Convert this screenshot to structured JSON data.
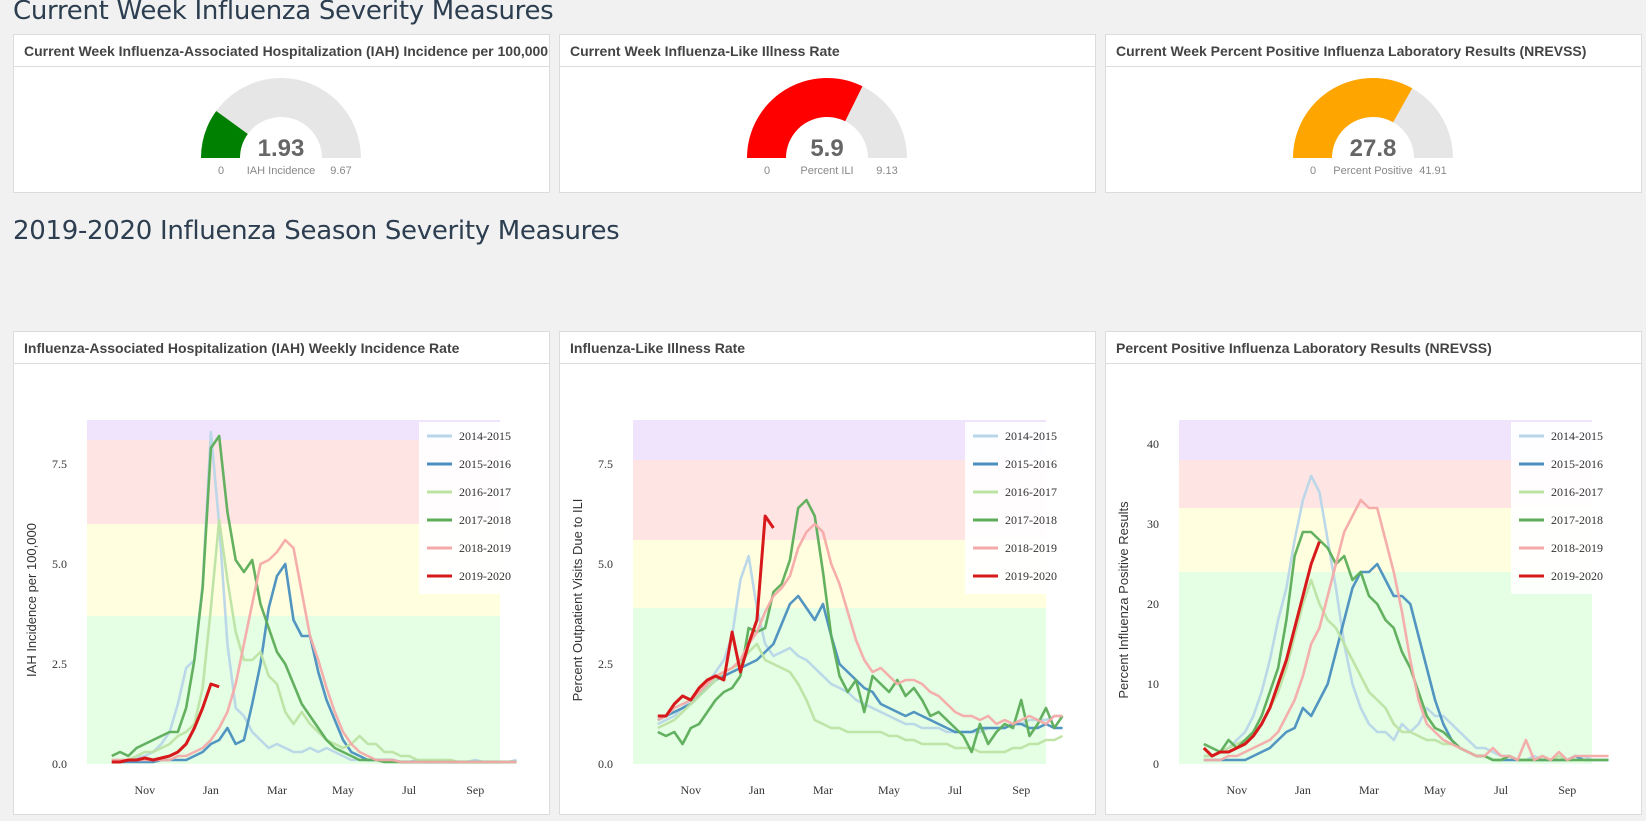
{
  "current_week_title": "Current Week Influenza Severity Measures",
  "season_title": "2019-2020 Influenza Season Severity Measures",
  "gauges": [
    {
      "title": "Current Week Influenza-Associated Hospitalization (IAH) Incidence per 100,000",
      "value": 1.93,
      "value_text": "1.93",
      "min": 0,
      "max": 9.67,
      "min_text": "0",
      "max_text": "9.67",
      "label": "IAH Incidence",
      "color": "#008000"
    },
    {
      "title": "Current Week Influenza-Like Illness Rate",
      "value": 5.9,
      "value_text": "5.9",
      "min": 0,
      "max": 9.13,
      "min_text": "0",
      "max_text": "9.13",
      "label": "Percent ILI",
      "color": "#ff0000"
    },
    {
      "title": "Current Week Percent Positive Influenza Laboratory Results (NREVSS)",
      "value": 27.8,
      "value_text": "27.8",
      "min": 0,
      "max": 41.91,
      "min_text": "0",
      "max_text": "41.91",
      "label": "Percent Positive",
      "color": "#ffa500"
    }
  ],
  "series_colors": {
    "2014-2015": "#b8d6e8",
    "2015-2016": "#4a8fbf",
    "2016-2017": "#bde3a3",
    "2017-2018": "#5cad58",
    "2018-2019": "#f4aaa8",
    "2019-2020": "#d7191c"
  },
  "band_colors": [
    "#e4ffe4",
    "#ffffe0",
    "#ffe4e4",
    "#efe4fb"
  ],
  "chart_data": [
    {
      "type": "line",
      "title": "Influenza-Associated Hospitalization (IAH) Weekly Incidence Rate",
      "ylabel": "IAH Incidence per 100,000",
      "xlabel": "",
      "x_ticks": [
        "Nov",
        "Jan",
        "Mar",
        "May",
        "Jul",
        "Sep"
      ],
      "x_tick_weeks": [
        4,
        12,
        20,
        28,
        36,
        44
      ],
      "x_range": [
        -3,
        47
      ],
      "ylim": [
        0,
        8.6
      ],
      "y_ticks": [
        0,
        2.5,
        5,
        7.5
      ],
      "y_tick_labels": [
        "0.0",
        "2.5",
        "5.0",
        "7.5"
      ],
      "bands": [
        0,
        3.7,
        6.0,
        8.1,
        8.6
      ],
      "legend_position": "top-right",
      "series": [
        {
          "name": "2014-2015",
          "values": [
            0.1,
            0.1,
            0.1,
            0.15,
            0.2,
            0.3,
            0.5,
            0.8,
            1.5,
            2.4,
            2.6,
            4.5,
            8.3,
            6.0,
            3.0,
            1.4,
            1.2,
            0.8,
            0.6,
            0.4,
            0.5,
            0.4,
            0.3,
            0.3,
            0.4,
            0.3,
            0.4,
            0.3,
            0.2,
            0.1,
            0.1,
            0.1,
            0.1,
            0.1,
            0.1,
            0.05,
            0.05,
            0.1,
            0.05,
            0.05,
            0.1,
            0.05,
            0.05,
            0.05,
            0.1,
            0.05,
            0.05,
            0.05,
            0.05,
            0.1
          ]
        },
        {
          "name": "2015-2016",
          "values": [
            0.05,
            0.05,
            0.05,
            0.05,
            0.05,
            0.05,
            0.1,
            0.1,
            0.1,
            0.1,
            0.2,
            0.3,
            0.5,
            0.6,
            0.9,
            0.5,
            0.6,
            1.5,
            2.5,
            3.9,
            4.7,
            5.0,
            3.6,
            3.2,
            3.2,
            2.3,
            1.6,
            1.1,
            0.6,
            0.3,
            0.2,
            0.1,
            0.1,
            0.1,
            0.1,
            0.05,
            0.05,
            0.05,
            0.05,
            0.05,
            0.05,
            0.05,
            0.05,
            0.05,
            0.05,
            0.05,
            0.05,
            0.05,
            0.05,
            0.05
          ]
        },
        {
          "name": "2016-2017",
          "values": [
            0.1,
            0.1,
            0.1,
            0.2,
            0.3,
            0.3,
            0.4,
            0.5,
            0.7,
            0.8,
            1.0,
            1.9,
            3.9,
            6.1,
            4.6,
            3.3,
            2.6,
            2.6,
            2.8,
            2.2,
            2.0,
            1.3,
            1.0,
            1.3,
            1.0,
            0.8,
            0.6,
            0.5,
            0.4,
            0.5,
            0.7,
            0.5,
            0.5,
            0.3,
            0.3,
            0.2,
            0.2,
            0.1,
            0.1,
            0.1,
            0.1,
            0.1,
            0.05,
            0.05,
            0.05,
            0.05,
            0.05,
            0.05,
            0.05,
            0.05
          ]
        },
        {
          "name": "2017-2018",
          "values": [
            0.2,
            0.3,
            0.2,
            0.4,
            0.5,
            0.6,
            0.7,
            0.8,
            0.8,
            1.4,
            2.6,
            4.4,
            7.9,
            8.2,
            6.3,
            5.1,
            4.8,
            5.1,
            4.0,
            3.4,
            2.8,
            2.5,
            2.0,
            1.5,
            1.2,
            0.9,
            0.6,
            0.4,
            0.3,
            0.2,
            0.1,
            0.1,
            0.1,
            0.05,
            0.05,
            0.05,
            0.05,
            0.05,
            0.05,
            0.05,
            0.05,
            0.05,
            0.05,
            0.05,
            0.05,
            0.05,
            0.05,
            0.05,
            0.05,
            0.05
          ]
        },
        {
          "name": "2018-2019",
          "values": [
            0.1,
            0.1,
            0.1,
            0.1,
            0.1,
            0.1,
            0.1,
            0.1,
            0.2,
            0.2,
            0.3,
            0.4,
            0.6,
            0.9,
            1.3,
            2.0,
            3.0,
            4.0,
            5.0,
            5.1,
            5.3,
            5.6,
            5.4,
            4.3,
            3.2,
            2.6,
            1.9,
            1.3,
            0.8,
            0.5,
            0.3,
            0.2,
            0.1,
            0.1,
            0.1,
            0.05,
            0.05,
            0.05,
            0.05,
            0.05,
            0.05,
            0.05,
            0.05,
            0.05,
            0.05,
            0.05,
            0.05,
            0.05,
            0.05,
            0.05
          ]
        },
        {
          "name": "2019-2020",
          "values": [
            0.05,
            0.05,
            0.1,
            0.1,
            0.15,
            0.1,
            0.15,
            0.2,
            0.3,
            0.5,
            0.9,
            1.4,
            2.0,
            1.93
          ]
        }
      ]
    },
    {
      "type": "line",
      "title": "Influenza-Like Illness Rate",
      "ylabel": "Percent Outpatient Visits Due to ILI",
      "xlabel": "",
      "x_ticks": [
        "Nov",
        "Jan",
        "Mar",
        "May",
        "Jul",
        "Sep"
      ],
      "x_tick_weeks": [
        4,
        12,
        20,
        28,
        36,
        44
      ],
      "x_range": [
        -3,
        47
      ],
      "ylim": [
        0,
        8.6
      ],
      "y_ticks": [
        0,
        2.5,
        5,
        7.5
      ],
      "y_tick_labels": [
        "0.0",
        "2.5",
        "5.0",
        "7.5"
      ],
      "bands": [
        0,
        3.9,
        5.6,
        7.6,
        8.6
      ],
      "legend_position": "top-right",
      "series": [
        {
          "name": "2014-2015",
          "values": [
            1.0,
            1.1,
            1.2,
            1.4,
            1.6,
            1.7,
            2.0,
            2.3,
            2.6,
            3.2,
            4.6,
            5.2,
            3.9,
            3.0,
            2.7,
            2.8,
            2.9,
            2.7,
            2.6,
            2.4,
            2.2,
            2.0,
            1.9,
            1.8,
            1.6,
            1.5,
            1.4,
            1.3,
            1.2,
            1.1,
            1.0,
            1.0,
            0.9,
            0.9,
            0.9,
            0.8,
            0.8,
            0.8,
            0.8,
            0.8,
            0.9,
            0.9,
            0.9,
            1.0,
            1.0,
            1.1,
            1.1,
            1.1,
            1.2,
            1.2
          ]
        },
        {
          "name": "2015-2016",
          "values": [
            1.1,
            1.2,
            1.3,
            1.4,
            1.5,
            1.7,
            1.9,
            2.1,
            2.2,
            2.3,
            2.4,
            2.5,
            2.6,
            2.8,
            3.0,
            3.5,
            4.0,
            4.2,
            3.9,
            3.6,
            4.0,
            3.2,
            2.5,
            2.3,
            2.1,
            1.9,
            1.8,
            1.5,
            1.4,
            1.3,
            1.2,
            1.3,
            1.2,
            1.1,
            1.0,
            0.9,
            0.8,
            0.8,
            0.8,
            0.9,
            0.9,
            0.9,
            0.9,
            1.0,
            1.0,
            0.9,
            0.9,
            1.0,
            0.9,
            0.9
          ]
        },
        {
          "name": "2016-2017",
          "values": [
            0.9,
            1.0,
            1.1,
            1.3,
            1.5,
            1.7,
            1.9,
            2.1,
            2.3,
            2.4,
            2.5,
            2.8,
            3.0,
            2.6,
            2.5,
            2.4,
            2.3,
            2.0,
            1.6,
            1.1,
            1.0,
            0.9,
            0.9,
            0.8,
            0.8,
            0.8,
            0.8,
            0.8,
            0.7,
            0.7,
            0.6,
            0.6,
            0.5,
            0.5,
            0.5,
            0.5,
            0.4,
            0.4,
            0.4,
            0.3,
            0.3,
            0.3,
            0.3,
            0.4,
            0.4,
            0.5,
            0.5,
            0.6,
            0.6,
            0.7
          ]
        },
        {
          "name": "2017-2018",
          "values": [
            0.8,
            0.7,
            0.8,
            0.5,
            0.9,
            1.0,
            1.3,
            1.6,
            1.8,
            1.9,
            2.2,
            3.4,
            3.3,
            3.4,
            4.3,
            4.5,
            5.1,
            6.4,
            6.6,
            6.2,
            4.8,
            3.2,
            2.2,
            1.8,
            2.1,
            1.3,
            2.2,
            2.0,
            1.8,
            2.1,
            1.7,
            1.9,
            1.6,
            1.2,
            1.3,
            1.1,
            0.9,
            0.7,
            0.3,
            1.0,
            0.5,
            0.8,
            1.0,
            0.9,
            1.6,
            0.7,
            1.0,
            1.4,
            0.9,
            1.2
          ]
        },
        {
          "name": "2018-2019",
          "values": [
            1.1,
            1.2,
            1.4,
            1.5,
            1.6,
            1.8,
            2.0,
            2.2,
            2.3,
            2.4,
            2.6,
            3.0,
            3.3,
            3.8,
            4.2,
            4.4,
            4.7,
            5.4,
            5.8,
            6.0,
            5.8,
            5.0,
            4.5,
            3.8,
            3.1,
            2.6,
            2.3,
            2.4,
            2.2,
            2.0,
            2.1,
            2.1,
            2.0,
            1.8,
            1.7,
            1.5,
            1.3,
            1.2,
            1.2,
            1.1,
            1.2,
            1.0,
            1.1,
            1.0,
            1.1,
            1.2,
            1.1,
            1.0,
            1.2,
            1.2
          ]
        },
        {
          "name": "2019-2020",
          "values": [
            1.2,
            1.2,
            1.5,
            1.7,
            1.6,
            1.9,
            2.1,
            2.2,
            2.1,
            3.3,
            2.3,
            3.0,
            3.6,
            6.2,
            5.9
          ]
        }
      ]
    },
    {
      "type": "line",
      "title": "Percent Positive Influenza Laboratory Results (NREVSS)",
      "ylabel": "Percent Influenza Positive Results",
      "xlabel": "",
      "x_ticks": [
        "Nov",
        "Jan",
        "Mar",
        "May",
        "Jul",
        "Sep"
      ],
      "x_tick_weeks": [
        4,
        12,
        20,
        28,
        36,
        44
      ],
      "x_range": [
        -3,
        47
      ],
      "ylim": [
        0,
        43
      ],
      "y_ticks": [
        0,
        10,
        20,
        30,
        40
      ],
      "y_tick_labels": [
        "0",
        "10",
        "20",
        "30",
        "40"
      ],
      "bands": [
        0,
        24,
        32,
        38,
        43
      ],
      "legend_position": "top-right",
      "series": [
        {
          "name": "2014-2015",
          "values": [
            1,
            1,
            1.5,
            2,
            3,
            4,
            6,
            9,
            13,
            18,
            22,
            28,
            33,
            36,
            34,
            28,
            22,
            15,
            10,
            7,
            5,
            4,
            4,
            3,
            5,
            4,
            5,
            7,
            6,
            6,
            5,
            4,
            3,
            2,
            2,
            1.5,
            1,
            1,
            0.5,
            0.5,
            1,
            0.5,
            0.5,
            1,
            0.5,
            0.5,
            1,
            0.5,
            0.5,
            0.5
          ]
        },
        {
          "name": "2015-2016",
          "values": [
            0.5,
            0.5,
            0.5,
            0.5,
            0.5,
            0.5,
            1,
            1.5,
            2,
            3,
            4,
            4.5,
            7,
            6,
            8,
            10,
            14,
            18,
            22,
            24,
            24,
            25,
            23,
            21,
            21,
            20,
            16,
            12,
            8,
            5,
            3,
            2,
            1.5,
            1,
            1,
            0.5,
            0.5,
            0.5,
            0.5,
            0.5,
            0.5,
            0.5,
            0.5,
            0.5,
            0.5,
            1,
            0.5,
            0.5,
            0.5,
            0.5
          ]
        },
        {
          "name": "2016-2017",
          "values": [
            1,
            1,
            1.5,
            2,
            2.5,
            3,
            4,
            5,
            7,
            9,
            12,
            16,
            20,
            23,
            20,
            18,
            17,
            15,
            13,
            11,
            9,
            8,
            7,
            5,
            4,
            4,
            3.5,
            3,
            3,
            2.5,
            2.5,
            2,
            1.5,
            1,
            1,
            0.5,
            0.5,
            1,
            0.5,
            0.5,
            0.5,
            1,
            0.5,
            1,
            0.5,
            0.5,
            0.5,
            0.5,
            0.5,
            0.5
          ]
        },
        {
          "name": "2017-2018",
          "values": [
            2.5,
            2,
            1.5,
            3,
            2,
            3,
            4,
            6,
            9,
            12,
            18,
            26,
            29,
            29,
            28,
            27,
            25,
            26,
            23,
            24,
            21,
            20,
            18,
            17,
            14,
            12,
            9,
            6,
            4.5,
            4,
            3,
            2,
            1.5,
            1,
            1,
            0.5,
            0.5,
            1,
            0.5,
            0.5,
            0.5,
            0.5,
            0.5,
            0.5,
            0.5,
            0.5,
            0.5,
            0.5,
            0.5,
            0.5
          ]
        },
        {
          "name": "2018-2019",
          "values": [
            0.5,
            0.5,
            0.5,
            1,
            1,
            1.5,
            2,
            2.5,
            3,
            4,
            6,
            8,
            11,
            15,
            17,
            21,
            25,
            29,
            31,
            33,
            32,
            32,
            28,
            24,
            19,
            13,
            8,
            5,
            4,
            3,
            2.5,
            2,
            1.5,
            1,
            1,
            2,
            1,
            1,
            0.5,
            3,
            0.5,
            1,
            0.5,
            1.5,
            0.5,
            1,
            1,
            1,
            1,
            1
          ]
        },
        {
          "name": "2019-2020",
          "values": [
            2,
            1,
            1.5,
            1.5,
            2,
            2.5,
            3.5,
            5,
            7,
            10,
            13,
            17,
            21,
            25,
            27.8
          ]
        }
      ]
    }
  ]
}
